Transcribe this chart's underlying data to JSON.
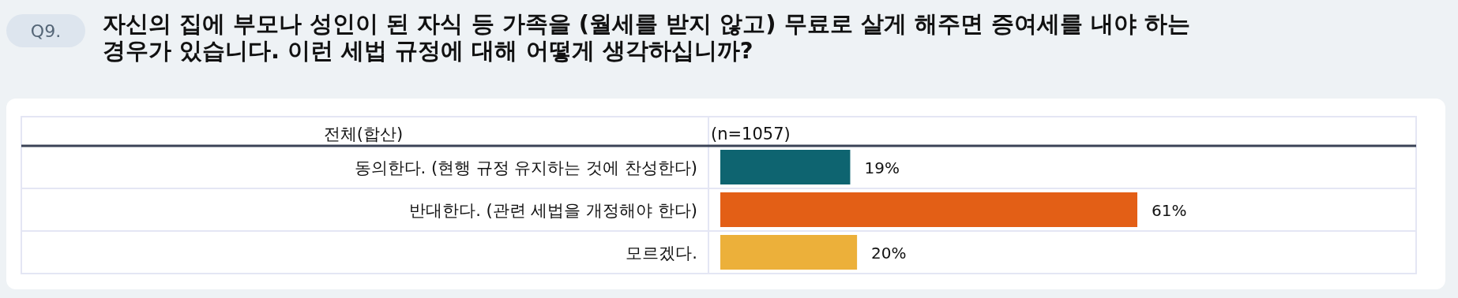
{
  "chart_data": {
    "type": "bar",
    "orientation": "horizontal",
    "title": "자신의 집에 부모나 성인이 된 자식 등 가족을 (월세를 받지 않고) 무료로 살게 해주면 증여세를 내야 하는 경우가 있습니다. 이런 세법 규정에 대해 어떻게 생각하십니까?",
    "subtitle": "Q9.",
    "annotations": [
      "전체(합산)",
      "(n=1057)"
    ],
    "categories": [
      "동의한다. (현행 규정 유지하는 것에 찬성한다)",
      "반대한다. (관련 세법을 개정해야 한다)",
      "모르겠다."
    ],
    "values": [
      19,
      61,
      20
    ],
    "colors": [
      "#0e6470",
      "#e35f16",
      "#ecb03a"
    ],
    "value_labels": [
      "19%",
      "61%",
      "20%"
    ]
  }
}
